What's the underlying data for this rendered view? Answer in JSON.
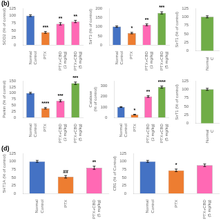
{
  "chart_data": [
    {
      "type": "bar",
      "ylabel": "SOD2 (% of control)",
      "categories": [
        "Normal\nControl",
        "PTX",
        "PTX+CBD\n(3 mg/kg)",
        "PTX+CBD\n(5 mg/kg)"
      ],
      "values": [
        100,
        43,
        72,
        80
      ],
      "errors": [
        3,
        3,
        4,
        4
      ],
      "colors": [
        "#4472c4",
        "#ed7d31",
        "#ff69b4",
        "#ff69b4"
      ],
      "ylim": [
        0,
        125
      ],
      "yticks": [
        0,
        25,
        50,
        75,
        100,
        125
      ],
      "grid": false,
      "annotations": [
        {
          "text": "(b)"
        },
        {
          "category": "PTX",
          "text": "***"
        },
        {
          "category": "PTX+CBD\n(3 mg/kg)",
          "text": "**"
        },
        {
          "category": "PTX+CBD\n(5 mg/kg)",
          "text": "**"
        }
      ]
    },
    {
      "type": "bar",
      "ylabel": "SirT3 (% of control)",
      "categories": [
        "Normal\nControl",
        "PTX",
        "PTX+CBD\n(3 mg/kg)",
        "PTX+CBD\n(5 mg/kg)"
      ],
      "values": [
        100,
        65,
        110,
        175
      ],
      "errors": [
        4,
        4,
        5,
        6
      ],
      "colors": [
        "#4472c4",
        "#ed7d31",
        "#ff69b4",
        "#70ad47"
      ],
      "ylim": [
        0,
        200
      ],
      "yticks": [
        0,
        50,
        100,
        150,
        200
      ],
      "grid": false,
      "annotations": [
        {
          "category": "PTX",
          "text": "*"
        },
        {
          "category": "PTX+CBD\n(3 mg/kg)",
          "text": "**"
        },
        {
          "category": "PTX+CBD\n(5 mg/kg)",
          "text": "***"
        }
      ]
    },
    {
      "type": "bar",
      "ylabel": "SirT1 (% of control)",
      "categories": [
        "Normal\nC"
      ],
      "values": [
        100
      ],
      "errors": [
        3
      ],
      "colors": [
        "#70ad47"
      ],
      "ylim": [
        0,
        125
      ],
      "yticks": [
        0,
        25,
        50,
        75,
        100,
        125
      ],
      "grid": false
    },
    {
      "type": "bar",
      "ylabel": "Parkin (% of control)",
      "categories": [
        "Normal\nControl",
        "PTX",
        "PTX+CBD\n(3 mg/kg)",
        "PTX+CBD\n(5 mg/kg)"
      ],
      "values": [
        100,
        38,
        68,
        140
      ],
      "errors": [
        3,
        3,
        4,
        5
      ],
      "colors": [
        "#4472c4",
        "#ed7d31",
        "#ff69b4",
        "#70ad47"
      ],
      "ylim": [
        0,
        150
      ],
      "yticks": [
        0,
        25,
        50,
        75,
        100,
        125,
        150
      ],
      "grid": false,
      "annotations": [
        {
          "category": "PTX",
          "text": "****"
        },
        {
          "category": "PTX+CBD\n(3 mg/kg)",
          "text": "***"
        },
        {
          "category": "PTX+CBD\n(5 mg/kg)",
          "text": "***"
        }
      ]
    },
    {
      "type": "bar",
      "ylabel": "Catalase\n(% of control)",
      "categories": [
        "Normal\nControl",
        "PTX",
        "PTX+CBD\n(3 mg/kg)",
        "PTX+CBD\n(5 mg/kg)"
      ],
      "values": [
        100,
        28,
        200,
        290
      ],
      "errors": [
        4,
        3,
        8,
        10
      ],
      "colors": [
        "#4472c4",
        "#ed7d31",
        "#ff69b4",
        "#70ad47"
      ],
      "ylim": [
        0,
        350
      ],
      "yticks": [
        0,
        100,
        200,
        300
      ],
      "grid": false,
      "annotations": [
        {
          "category": "PTX",
          "text": "*"
        },
        {
          "category": "PTX+CBD\n(3 mg/kg)",
          "text": "**"
        },
        {
          "category": "PTX+CBD\n(5 mg/kg)",
          "text": "****"
        }
      ]
    },
    {
      "type": "bar",
      "ylabel": "SirT1 (% of control)",
      "categories": [
        "Normal\nC"
      ],
      "values": [
        100
      ],
      "errors": [
        3
      ],
      "colors": [
        "#70ad47"
      ],
      "ylim": [
        0,
        125
      ],
      "yticks": [
        0,
        25,
        50,
        75,
        100,
        125
      ],
      "grid": false
    },
    {
      "type": "bar",
      "ylabel": "5HT1A (% of control)",
      "categories": [
        "Normal\nControl",
        "PTX",
        "PTX+CBD\n(5 mg/kg)"
      ],
      "values": [
        100,
        52,
        80
      ],
      "errors": [
        3,
        4,
        5
      ],
      "colors": [
        "#4472c4",
        "#ed7d31",
        "#ff69b4"
      ],
      "ylim": [
        0,
        125
      ],
      "yticks": [
        0,
        25,
        50,
        75,
        100,
        125
      ],
      "grid": false,
      "annotations": [
        {
          "text": "(d)"
        },
        {
          "category": "PTX",
          "text": "##"
        },
        {
          "category": "PTX+CBD\n(5 mg/kg)",
          "text": "**"
        }
      ]
    },
    {
      "type": "bar",
      "ylabel": "CB1 (% of Control)",
      "categories": [
        "Normal\nControl",
        "PTX",
        "PTX+CBD\n(5 mg/kg)"
      ],
      "values": [
        100,
        72,
        88
      ],
      "errors": [
        3,
        4,
        4
      ],
      "colors": [
        "#4472c4",
        "#ed7d31",
        "#ff69b4"
      ],
      "ylim": [
        0,
        125
      ],
      "yticks": [
        0,
        25,
        50,
        75,
        100,
        125
      ],
      "grid": false,
      "annotations": [
        {
          "category": "PTX",
          "text": "*"
        }
      ]
    }
  ]
}
